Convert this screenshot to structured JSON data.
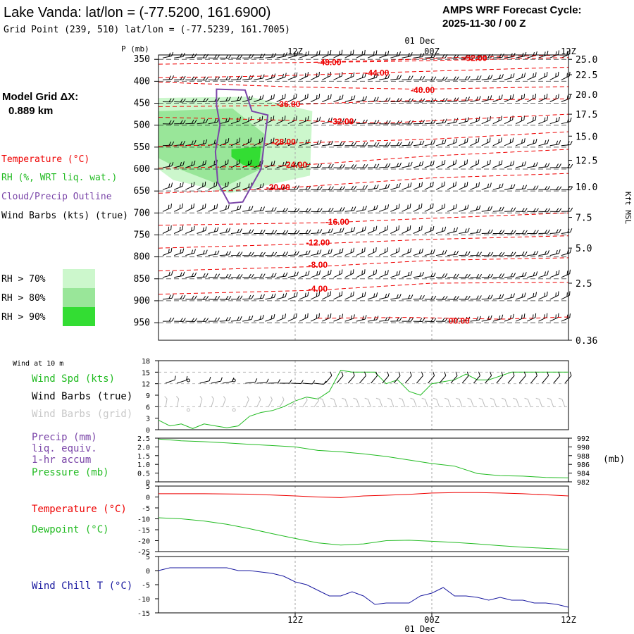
{
  "header": {
    "title": "Lake Vanda:  lat/lon = (-77.5200, 161.6900)",
    "subtitle": "Grid Point (239, 510) lat/lon = (-77.5239, 161.7005)",
    "cycle_label": "AMPS WRF Forecast Cycle:",
    "cycle_value": "2025-11-30 / 00  Z"
  },
  "legend": {
    "grid_label": "Model Grid ΔX:",
    "grid_value": "0.889 km",
    "temperature": "Temperature (°C)",
    "rh": "RH (%, WRT liq. wat.)",
    "cloud": "Cloud/Precip Outline",
    "wind": "Wind Barbs (kts) (true)",
    "rh70": "RH > 70%",
    "rh80": "RH > 80%",
    "rh90": "RH > 90%"
  },
  "colors": {
    "temperature": "#ee0000",
    "rh70": "#ccf7cc",
    "rh80": "#99e699",
    "rh90": "#33dd33",
    "cloud": "#7a45a8",
    "green": "#22bb22",
    "purple": "#7a45a8",
    "blue": "#1a1aa0",
    "grey": "#c8c8c8"
  },
  "time_axis": {
    "top_date": "01 Dec",
    "bottom_date": "01 Dec",
    "ticks": [
      {
        "t": 12,
        "label": "12Z"
      },
      {
        "t": 24,
        "label": "00Z"
      },
      {
        "t": 36,
        "label": "12Z"
      }
    ]
  },
  "chart_data": [
    {
      "type": "line",
      "name": "sounding-cross-section",
      "ylabel": "P (mb)",
      "right_label": "Kft MSL",
      "x_range": [
        0,
        36
      ],
      "p_range": [
        340,
        990
      ],
      "pressure_ticks": [
        350,
        400,
        450,
        500,
        550,
        600,
        650,
        700,
        750,
        800,
        850,
        900,
        950
      ],
      "height_ticks": [
        {
          "label": "25.0",
          "p": 350
        },
        {
          "label": "22.5",
          "p": 385
        },
        {
          "label": "20.0",
          "p": 430
        },
        {
          "label": "17.5",
          "p": 475
        },
        {
          "label": "15.0",
          "p": 525
        },
        {
          "label": "12.5",
          "p": 580
        },
        {
          "label": "10.0",
          "p": 640
        },
        {
          "label": "7.5",
          "p": 710
        },
        {
          "label": "5.0",
          "p": 780
        },
        {
          "label": "2.5",
          "p": 860
        },
        {
          "label": "0.36",
          "p": 990
        }
      ],
      "isotherms": [
        {
          "label": "-52.00",
          "t": 27.8,
          "p": 347,
          "points": [
            [
              13,
              357
            ],
            [
              20,
              352
            ],
            [
              27,
              345
            ],
            [
              36,
              340
            ]
          ]
        },
        {
          "label": "-48.00",
          "t": 15.0,
          "p": 357,
          "points": [
            [
              0,
              361
            ],
            [
              10,
              358
            ],
            [
              20,
              355
            ],
            [
              36,
              346
            ]
          ]
        },
        {
          "label": "-44.00",
          "t": 19.2,
          "p": 381,
          "points": [
            [
              0,
              392
            ],
            [
              10,
              388
            ],
            [
              20,
              380
            ],
            [
              36,
              368
            ]
          ]
        },
        {
          "label": "-40.00",
          "t": 23.2,
          "p": 420,
          "points": [
            [
              0,
              402
            ],
            [
              12,
              413
            ],
            [
              23,
              418
            ],
            [
              36,
              412
            ]
          ]
        },
        {
          "label": "-36.00",
          "t": 11.4,
          "p": 452,
          "points": [
            [
              0,
              458
            ],
            [
              10,
              455
            ],
            [
              20,
              445
            ],
            [
              36,
              440
            ]
          ]
        },
        {
          "label": "-32.00",
          "t": 16.1,
          "p": 492,
          "points": [
            [
              0,
              482
            ],
            [
              10,
              488
            ],
            [
              20,
              495
            ],
            [
              36,
              475
            ]
          ]
        },
        {
          "label": "-28.00",
          "t": 11.0,
          "p": 538,
          "points": [
            [
              0,
              548
            ],
            [
              10,
              542
            ],
            [
              24,
              532
            ],
            [
              36,
              515
            ]
          ]
        },
        {
          "label": "-24.00",
          "t": 12.0,
          "p": 590,
          "points": [
            [
              0,
              598
            ],
            [
              12,
              592
            ],
            [
              24,
              570
            ],
            [
              36,
              555
            ]
          ]
        },
        {
          "label": "-20.00",
          "t": 10.5,
          "p": 642,
          "points": [
            [
              0,
              655
            ],
            [
              10,
              645
            ],
            [
              24,
              620
            ],
            [
              36,
              610
            ]
          ]
        },
        {
          "label": "-16.00",
          "t": 15.7,
          "p": 720,
          "points": [
            [
              0,
              728
            ],
            [
              15,
              722
            ],
            [
              24,
              712
            ],
            [
              36,
              700
            ]
          ]
        },
        {
          "label": "-12.00",
          "t": 14.0,
          "p": 768,
          "points": [
            [
              0,
              780
            ],
            [
              14,
              770
            ],
            [
              24,
              760
            ],
            [
              36,
              752
            ]
          ]
        },
        {
          "label": "-8.00",
          "t": 14.0,
          "p": 818,
          "points": [
            [
              0,
              832
            ],
            [
              14,
              822
            ],
            [
              24,
              808
            ],
            [
              36,
              802
            ]
          ]
        },
        {
          "label": "-4.00",
          "t": 14.0,
          "p": 873,
          "points": [
            [
              0,
              885
            ],
            [
              14,
              876
            ],
            [
              24,
              860
            ],
            [
              36,
              858
            ]
          ]
        },
        {
          "label": "00.00",
          "t": 26.4,
          "p": 946,
          "points": [
            [
              14,
              940
            ],
            [
              22,
              938
            ],
            [
              30,
              942
            ],
            [
              36,
              937
            ]
          ]
        }
      ],
      "rh70": [
        [
          0,
          438
        ],
        [
          8,
          435
        ],
        [
          13.5,
          468
        ],
        [
          13.3,
          615
        ],
        [
          6.3,
          655
        ],
        [
          1.3,
          625
        ],
        [
          0,
          600
        ]
      ],
      "rh80": [
        [
          0,
          468
        ],
        [
          6.5,
          462
        ],
        [
          9.3,
          520
        ],
        [
          9.0,
          600
        ],
        [
          5.8,
          640
        ],
        [
          2.0,
          602
        ],
        [
          0,
          575
        ]
      ],
      "rh90": [
        [
          6.4,
          555
        ],
        [
          9.0,
          548
        ],
        [
          8.8,
          600
        ],
        [
          7.4,
          590
        ],
        [
          6.4,
          572
        ]
      ],
      "cloud": [
        [
          5.1,
          418
        ],
        [
          7.6,
          420
        ],
        [
          8.2,
          468
        ],
        [
          9.6,
          477
        ],
        [
          9.0,
          600
        ],
        [
          7.4,
          675
        ],
        [
          6.2,
          678
        ],
        [
          5.2,
          630
        ],
        [
          5.0,
          560
        ],
        [
          5.4,
          500
        ],
        [
          5.1,
          455
        ]
      ]
    },
    {
      "type": "line",
      "name": "wind-at-10m",
      "panel_label": "Wind at 10 m",
      "x_range": [
        0,
        36
      ],
      "y_range": [
        0,
        18
      ],
      "yticks": [
        0,
        3,
        6,
        9,
        12,
        15,
        18
      ],
      "series": [
        {
          "name": "Wind Spd (kts)",
          "x": [
            0,
            1,
            2,
            3,
            4,
            5,
            6,
            7,
            8,
            9,
            10,
            11,
            12,
            13,
            14,
            15,
            16,
            17,
            18,
            19,
            20,
            21,
            22,
            23,
            24,
            25,
            26,
            27,
            28,
            29,
            30,
            31,
            32,
            33,
            34,
            35,
            36
          ],
          "values": [
            2.5,
            1,
            1.5,
            0.3,
            1.5,
            1,
            0.5,
            1,
            3.5,
            4.5,
            5,
            6,
            7.5,
            8.5,
            8,
            10,
            15.5,
            15,
            15,
            15,
            12,
            13,
            10,
            9,
            12,
            12.5,
            13,
            14.5,
            13,
            13,
            14,
            15,
            15,
            15,
            15,
            15,
            15
          ]
        }
      ],
      "legend": {
        "spd": "Wind Spd (kts)",
        "barbs_true": "Wind Barbs (true)",
        "barbs_grid": "Wind Barbs (grid)"
      }
    },
    {
      "type": "line",
      "name": "precip-pressure",
      "x_range": [
        0,
        36
      ],
      "y_range": [
        0,
        2.5
      ],
      "yticks": [
        "0",
        "0.5",
        "1.0",
        "1.5",
        "2.0",
        "2.5"
      ],
      "right_ticks": [
        "992",
        "990",
        "988",
        "986",
        "984",
        "982"
      ],
      "right_range": [
        982,
        992
      ],
      "right_unit": "(mb)",
      "series": [
        {
          "name": "Pressure (mb)",
          "x": [
            0,
            2,
            4,
            6,
            8,
            10,
            12,
            14,
            16,
            18,
            20,
            22,
            24,
            26,
            28,
            30,
            32,
            34,
            36
          ],
          "values": [
            991.8,
            991.4,
            991.2,
            990.9,
            990.6,
            990.3,
            990.0,
            989.2,
            988.9,
            988.4,
            987.8,
            987.0,
            986.2,
            985.6,
            983.9,
            983.4,
            983.3,
            983.0,
            982.9
          ]
        }
      ],
      "legend": {
        "precip": "Precip (mm)",
        "liq": "liq. equiv.",
        "accum": "1-hr accum",
        "pressure": "Pressure (mb)"
      }
    },
    {
      "type": "line",
      "name": "temperature-dewpoint",
      "x_range": [
        0,
        36
      ],
      "y_range": [
        -25,
        5
      ],
      "yticks": [
        5,
        0,
        -5,
        -10,
        -15,
        -20,
        -25
      ],
      "series": [
        {
          "name": "Temperature (°C)",
          "x": [
            0,
            4,
            8,
            12,
            14,
            16,
            18,
            20,
            22,
            24,
            26,
            28,
            30,
            32,
            34,
            36
          ],
          "values": [
            1.5,
            1.5,
            1.3,
            0.5,
            0,
            -0.3,
            0.5,
            0.8,
            1.2,
            1.8,
            2.0,
            2.0,
            1.8,
            1.5,
            1.0,
            0.5
          ]
        },
        {
          "name": "Dewpoint (°C)",
          "x": [
            0,
            2,
            4,
            6,
            8,
            10,
            12,
            14,
            16,
            18,
            20,
            22,
            24,
            26,
            28,
            30,
            32,
            34,
            36
          ],
          "values": [
            -9.5,
            -10,
            -11,
            -12.5,
            -14.5,
            -16.8,
            -19,
            -21,
            -22,
            -21.5,
            -20,
            -19.8,
            -20.3,
            -20.8,
            -21.5,
            -22.3,
            -23,
            -23.5,
            -24
          ]
        }
      ],
      "legend": {
        "temperature": "Temperature (°C)",
        "dewpoint": "Dewpoint (°C)"
      }
    },
    {
      "type": "line",
      "name": "wind-chill",
      "x_range": [
        0,
        36
      ],
      "y_range": [
        -15,
        5
      ],
      "yticks": [
        5,
        0,
        -5,
        -10,
        -15
      ],
      "series": [
        {
          "name": "Wind Chill T (°C)",
          "x": [
            0,
            1,
            2,
            3,
            4,
            5,
            6,
            7,
            8,
            9,
            10,
            11,
            12,
            13,
            14,
            15,
            16,
            17,
            18,
            19,
            20,
            21,
            22,
            23,
            24,
            25,
            26,
            27,
            28,
            29,
            30,
            31,
            32,
            33,
            34,
            35,
            36
          ],
          "values": [
            0,
            1,
            1,
            1,
            1,
            1,
            1,
            0,
            0,
            -0.5,
            -1,
            -2,
            -4,
            -5,
            -7,
            -9,
            -9,
            -7.5,
            -9,
            -12,
            -11.5,
            -11.5,
            -11.5,
            -9,
            -8,
            -6,
            -9,
            -9,
            -9.5,
            -10.5,
            -9.5,
            -10.5,
            -10.5,
            -11.5,
            -11.5,
            -12,
            -13
          ]
        }
      ],
      "legend": {
        "windchill": "Wind Chill T (°C)"
      }
    }
  ]
}
